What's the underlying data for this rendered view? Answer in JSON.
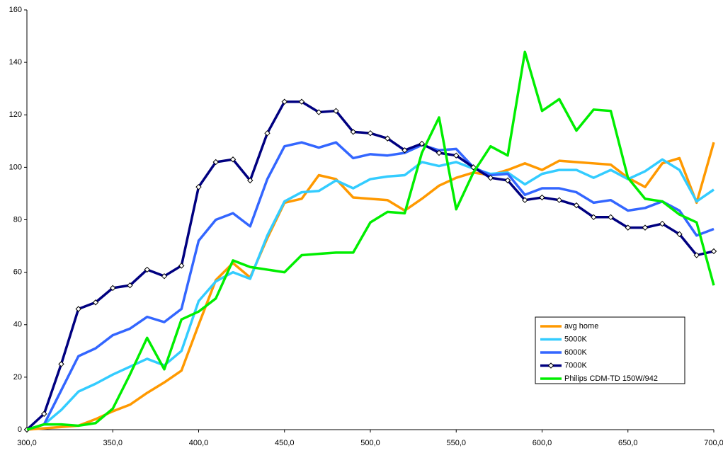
{
  "chart_data": {
    "type": "line",
    "x": [
      300,
      310,
      320,
      330,
      340,
      350,
      360,
      370,
      380,
      390,
      400,
      410,
      420,
      430,
      440,
      450,
      460,
      470,
      480,
      490,
      500,
      510,
      520,
      530,
      540,
      550,
      560,
      570,
      580,
      590,
      600,
      610,
      620,
      630,
      640,
      650,
      660,
      670,
      680,
      690,
      700
    ],
    "xlim": [
      300,
      700
    ],
    "xticks": [
      {
        "value": 300,
        "label": "300,0"
      },
      {
        "value": 350,
        "label": "350,0"
      },
      {
        "value": 400,
        "label": "400,0"
      },
      {
        "value": 450,
        "label": "450,0"
      },
      {
        "value": 500,
        "label": "500,0"
      },
      {
        "value": 550,
        "label": "550,0"
      },
      {
        "value": 600,
        "label": "600,0"
      },
      {
        "value": 650,
        "label": "650,0"
      },
      {
        "value": 700,
        "label": "700,0"
      }
    ],
    "ylim": [
      0,
      160
    ],
    "yticks": [
      0,
      20,
      40,
      60,
      80,
      100,
      120,
      140,
      160
    ],
    "grid": false,
    "legend": "lower-right",
    "series": [
      {
        "name": "avg home",
        "color": "#ff9900",
        "marker": false,
        "values": [
          0,
          0.5,
          1,
          1.5,
          4,
          7,
          9.5,
          14,
          18,
          22.5,
          40,
          57,
          63.5,
          58,
          73,
          86.5,
          88,
          97,
          95.5,
          88.5,
          88,
          87.5,
          83.5,
          88,
          93,
          96,
          98,
          97,
          99,
          101.5,
          99,
          102.5,
          102,
          101.5,
          101,
          96,
          92.5,
          101.5,
          103.5,
          86.5,
          109.5
        ]
      },
      {
        "name": "5000K",
        "color": "#33ccff",
        "marker": false,
        "values": [
          0,
          2,
          7.5,
          14.5,
          17.5,
          21,
          24,
          27,
          24.5,
          30,
          49,
          56.5,
          60,
          57.5,
          74,
          87,
          90.5,
          91,
          95,
          92,
          95.5,
          96.5,
          97,
          102,
          100.5,
          102,
          99.5,
          97.5,
          98,
          93.5,
          97.5,
          99,
          99,
          96,
          99,
          95.5,
          98.5,
          103,
          99,
          87,
          91.5
        ]
      },
      {
        "name": "6000K",
        "color": "#3366ff",
        "marker": false,
        "values": [
          0,
          2,
          15,
          28,
          31,
          36,
          38.5,
          43,
          41,
          46,
          72,
          80,
          82.5,
          77.5,
          95.5,
          108,
          109.5,
          107.5,
          109.5,
          103.5,
          105,
          104.5,
          105.5,
          108.5,
          106.5,
          107,
          100,
          97,
          97.5,
          89.5,
          92,
          92,
          90.5,
          86.5,
          87.5,
          83.5,
          84.5,
          87,
          83.5,
          74,
          76.5
        ]
      },
      {
        "name": "7000K",
        "color": "#000080",
        "marker": true,
        "values": [
          0,
          6,
          25,
          46,
          48.5,
          54,
          55,
          61,
          58.5,
          62.5,
          92.5,
          102,
          103,
          95,
          113,
          125,
          125,
          121,
          121.5,
          113.5,
          113,
          111,
          106.5,
          109,
          105.5,
          104.5,
          100,
          96,
          95,
          87.5,
          88.5,
          87.5,
          85.5,
          81,
          81,
          77,
          77,
          78.5,
          74.5,
          66.5,
          68
        ]
      },
      {
        "name": "Philips CDM-TD 150W/942",
        "color": "#00ee00",
        "marker": false,
        "values": [
          0,
          2,
          2,
          1.5,
          2.5,
          8,
          21,
          35,
          23,
          42,
          45,
          50,
          64.5,
          62,
          61,
          60,
          66.5,
          67,
          67.5,
          67.5,
          79,
          83,
          82.5,
          105.5,
          119,
          84,
          98,
          108,
          104.5,
          144,
          121.5,
          126,
          114,
          122,
          121.5,
          96,
          88,
          87,
          82,
          79,
          55
        ]
      }
    ]
  }
}
